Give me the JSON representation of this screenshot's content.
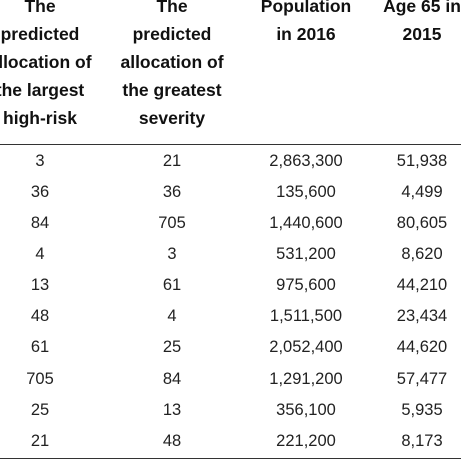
{
  "table": {
    "headers": [
      "The\npredicted\nallocation of\nthe largest\nhigh-risk",
      "The\npredicted\nallocation of\nthe greatest\nseverity",
      "Population\nin 2016",
      "Age 65 in\n2015"
    ],
    "rows": [
      [
        "3",
        "21",
        "2,863,300",
        "51,938"
      ],
      [
        "36",
        "36",
        "135,600",
        "4,499"
      ],
      [
        "84",
        "705",
        "1,440,600",
        "80,605"
      ],
      [
        "4",
        "3",
        "531,200",
        "8,620"
      ],
      [
        "13",
        "61",
        "975,600",
        "44,210"
      ],
      [
        "48",
        "4",
        "1,511,500",
        "23,434"
      ],
      [
        "61",
        "25",
        "2,052,400",
        "44,620"
      ],
      [
        "705",
        "84",
        "1,291,200",
        "57,477"
      ],
      [
        "25",
        "13",
        "356,100",
        "5,935"
      ],
      [
        "21",
        "48",
        "221,200",
        "8,173"
      ]
    ]
  }
}
